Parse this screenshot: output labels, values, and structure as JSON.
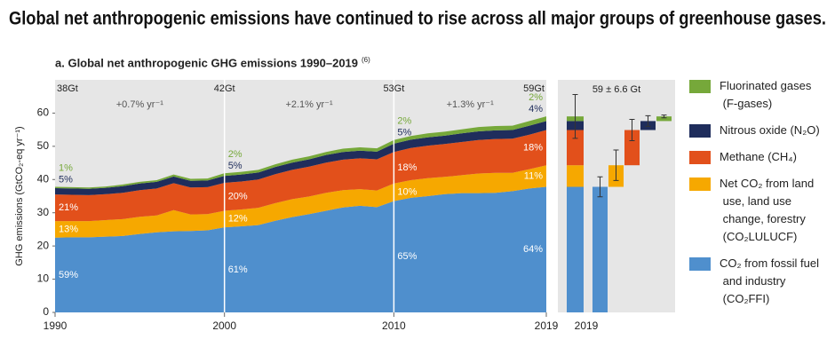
{
  "chart_data": {
    "type": "stacked_area",
    "title": "Global net anthropogenic emissions have continued to rise across all major groups of greenhouse gases.",
    "subtitle": "a. Global net anthropogenic GHG emissions 1990–2019",
    "subtitle_note": "(6)",
    "y_label": "GHG emissions (GtCO₂-eq yr⁻¹)",
    "x": [
      1990,
      1991,
      1992,
      1993,
      1994,
      1995,
      1996,
      1997,
      1998,
      1999,
      2000,
      2001,
      2002,
      2003,
      2004,
      2005,
      2006,
      2007,
      2008,
      2009,
      2010,
      2011,
      2012,
      2013,
      2014,
      2015,
      2016,
      2017,
      2018,
      2019
    ],
    "xlim": [
      1990,
      2019
    ],
    "xticks": [
      1990,
      2000,
      2010,
      2019
    ],
    "ylim": [
      0,
      70
    ],
    "yticks": [
      0,
      10,
      20,
      30,
      40,
      50,
      60
    ],
    "marked_years": [
      1990,
      2000,
      2010,
      2019
    ],
    "total_labels": [
      "38Gt",
      "42Gt",
      "53Gt",
      "59Gt"
    ],
    "growth_labels": [
      "+0.7% yr⁻¹",
      "+2.1% yr⁻¹",
      "+1.3% yr⁻¹"
    ],
    "series": [
      {
        "name": "CO₂ from fossil fuel and industry (CO₂FFI)",
        "color": "#4f8fcd",
        "values": [
          22.5,
          22.6,
          22.6,
          22.8,
          23.0,
          23.6,
          24.1,
          24.4,
          24.5,
          24.7,
          25.6,
          25.9,
          26.3,
          27.6,
          28.7,
          29.6,
          30.6,
          31.6,
          32.1,
          31.7,
          33.5,
          34.5,
          35.0,
          35.6,
          35.9,
          35.9,
          36.0,
          36.5,
          37.3,
          37.8
        ],
        "share_labels": [
          "59%",
          "61%",
          "65%",
          "64%"
        ]
      },
      {
        "name": "Net CO₂ from land use, land use change, forestry (CO₂LULUCF)",
        "color": "#f6a800",
        "values": [
          5.0,
          4.9,
          4.9,
          5.0,
          5.1,
          5.2,
          5.1,
          6.4,
          5.0,
          4.9,
          5.0,
          5.1,
          5.2,
          5.3,
          5.4,
          5.3,
          5.4,
          5.2,
          5.0,
          5.0,
          5.3,
          5.3,
          5.4,
          5.2,
          5.4,
          5.9,
          6.0,
          5.5,
          5.8,
          6.5
        ],
        "share_labels": [
          "13%",
          "12%",
          "10%",
          "11%"
        ]
      },
      {
        "name": "Methane (CH₄)",
        "color": "#e2501b",
        "values": [
          8.0,
          7.9,
          7.8,
          7.8,
          7.9,
          8.0,
          8.1,
          8.1,
          8.1,
          8.1,
          8.4,
          8.4,
          8.5,
          8.7,
          8.8,
          9.0,
          9.1,
          9.2,
          9.3,
          9.4,
          9.5,
          9.7,
          9.8,
          9.9,
          10.0,
          10.1,
          10.2,
          10.3,
          10.4,
          10.6
        ],
        "share_labels": [
          "21%",
          "20%",
          "18%",
          "18%"
        ]
      },
      {
        "name": "Nitrous oxide (N₂O)",
        "color": "#1f2d5c",
        "values": [
          1.9,
          1.9,
          1.9,
          1.9,
          2.0,
          2.0,
          2.0,
          2.0,
          2.0,
          2.0,
          2.1,
          2.1,
          2.1,
          2.2,
          2.2,
          2.2,
          2.3,
          2.3,
          2.3,
          2.3,
          2.5,
          2.5,
          2.5,
          2.5,
          2.6,
          2.6,
          2.6,
          2.6,
          2.7,
          2.7
        ],
        "share_labels": [
          "5%",
          "5%",
          "5%",
          "4%"
        ]
      },
      {
        "name": "Fluorinated gases (F-gases)",
        "color": "#76a83a",
        "values": [
          0.4,
          0.4,
          0.4,
          0.4,
          0.5,
          0.5,
          0.5,
          0.6,
          0.6,
          0.6,
          0.8,
          0.8,
          0.8,
          0.8,
          0.9,
          0.9,
          0.9,
          1.0,
          1.0,
          1.0,
          1.1,
          1.1,
          1.2,
          1.2,
          1.2,
          1.3,
          1.3,
          1.3,
          1.4,
          1.4
        ],
        "share_labels": [
          "1%",
          "2%",
          "2%",
          "2%"
        ]
      }
    ],
    "breakdown": {
      "year": 2019,
      "total_label": "59 ± 6.6 Gt",
      "total_uncertainty": 6.6,
      "uncertainty": [
        3.0,
        4.6,
        3.2,
        1.6,
        0.41
      ]
    }
  }
}
